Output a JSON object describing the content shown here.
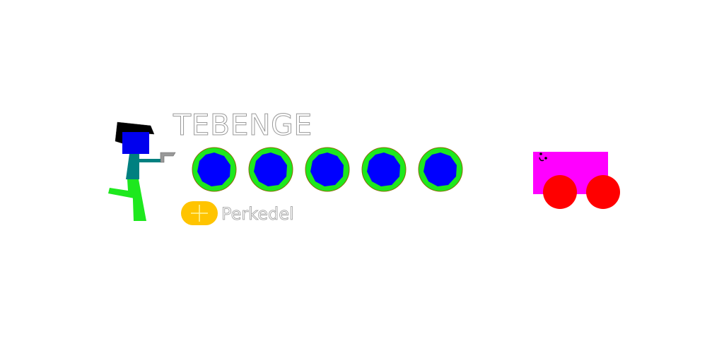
{
  "game": {
    "title": "TEBENGE",
    "targets_count": 5,
    "action_button": {
      "label": "Perkedel",
      "icon": "plus-icon",
      "color": "#ffc400"
    },
    "colors": {
      "target_ring": "#1ee81e",
      "target_core": "#0000ff",
      "vehicle_body": "#ff00ff",
      "vehicle_wheel": "#ff0000",
      "player_head": "#0000ee",
      "player_hair": "#000000",
      "player_torso": "#008080",
      "player_legs": "#1ee81e",
      "gun": "#888888"
    }
  }
}
